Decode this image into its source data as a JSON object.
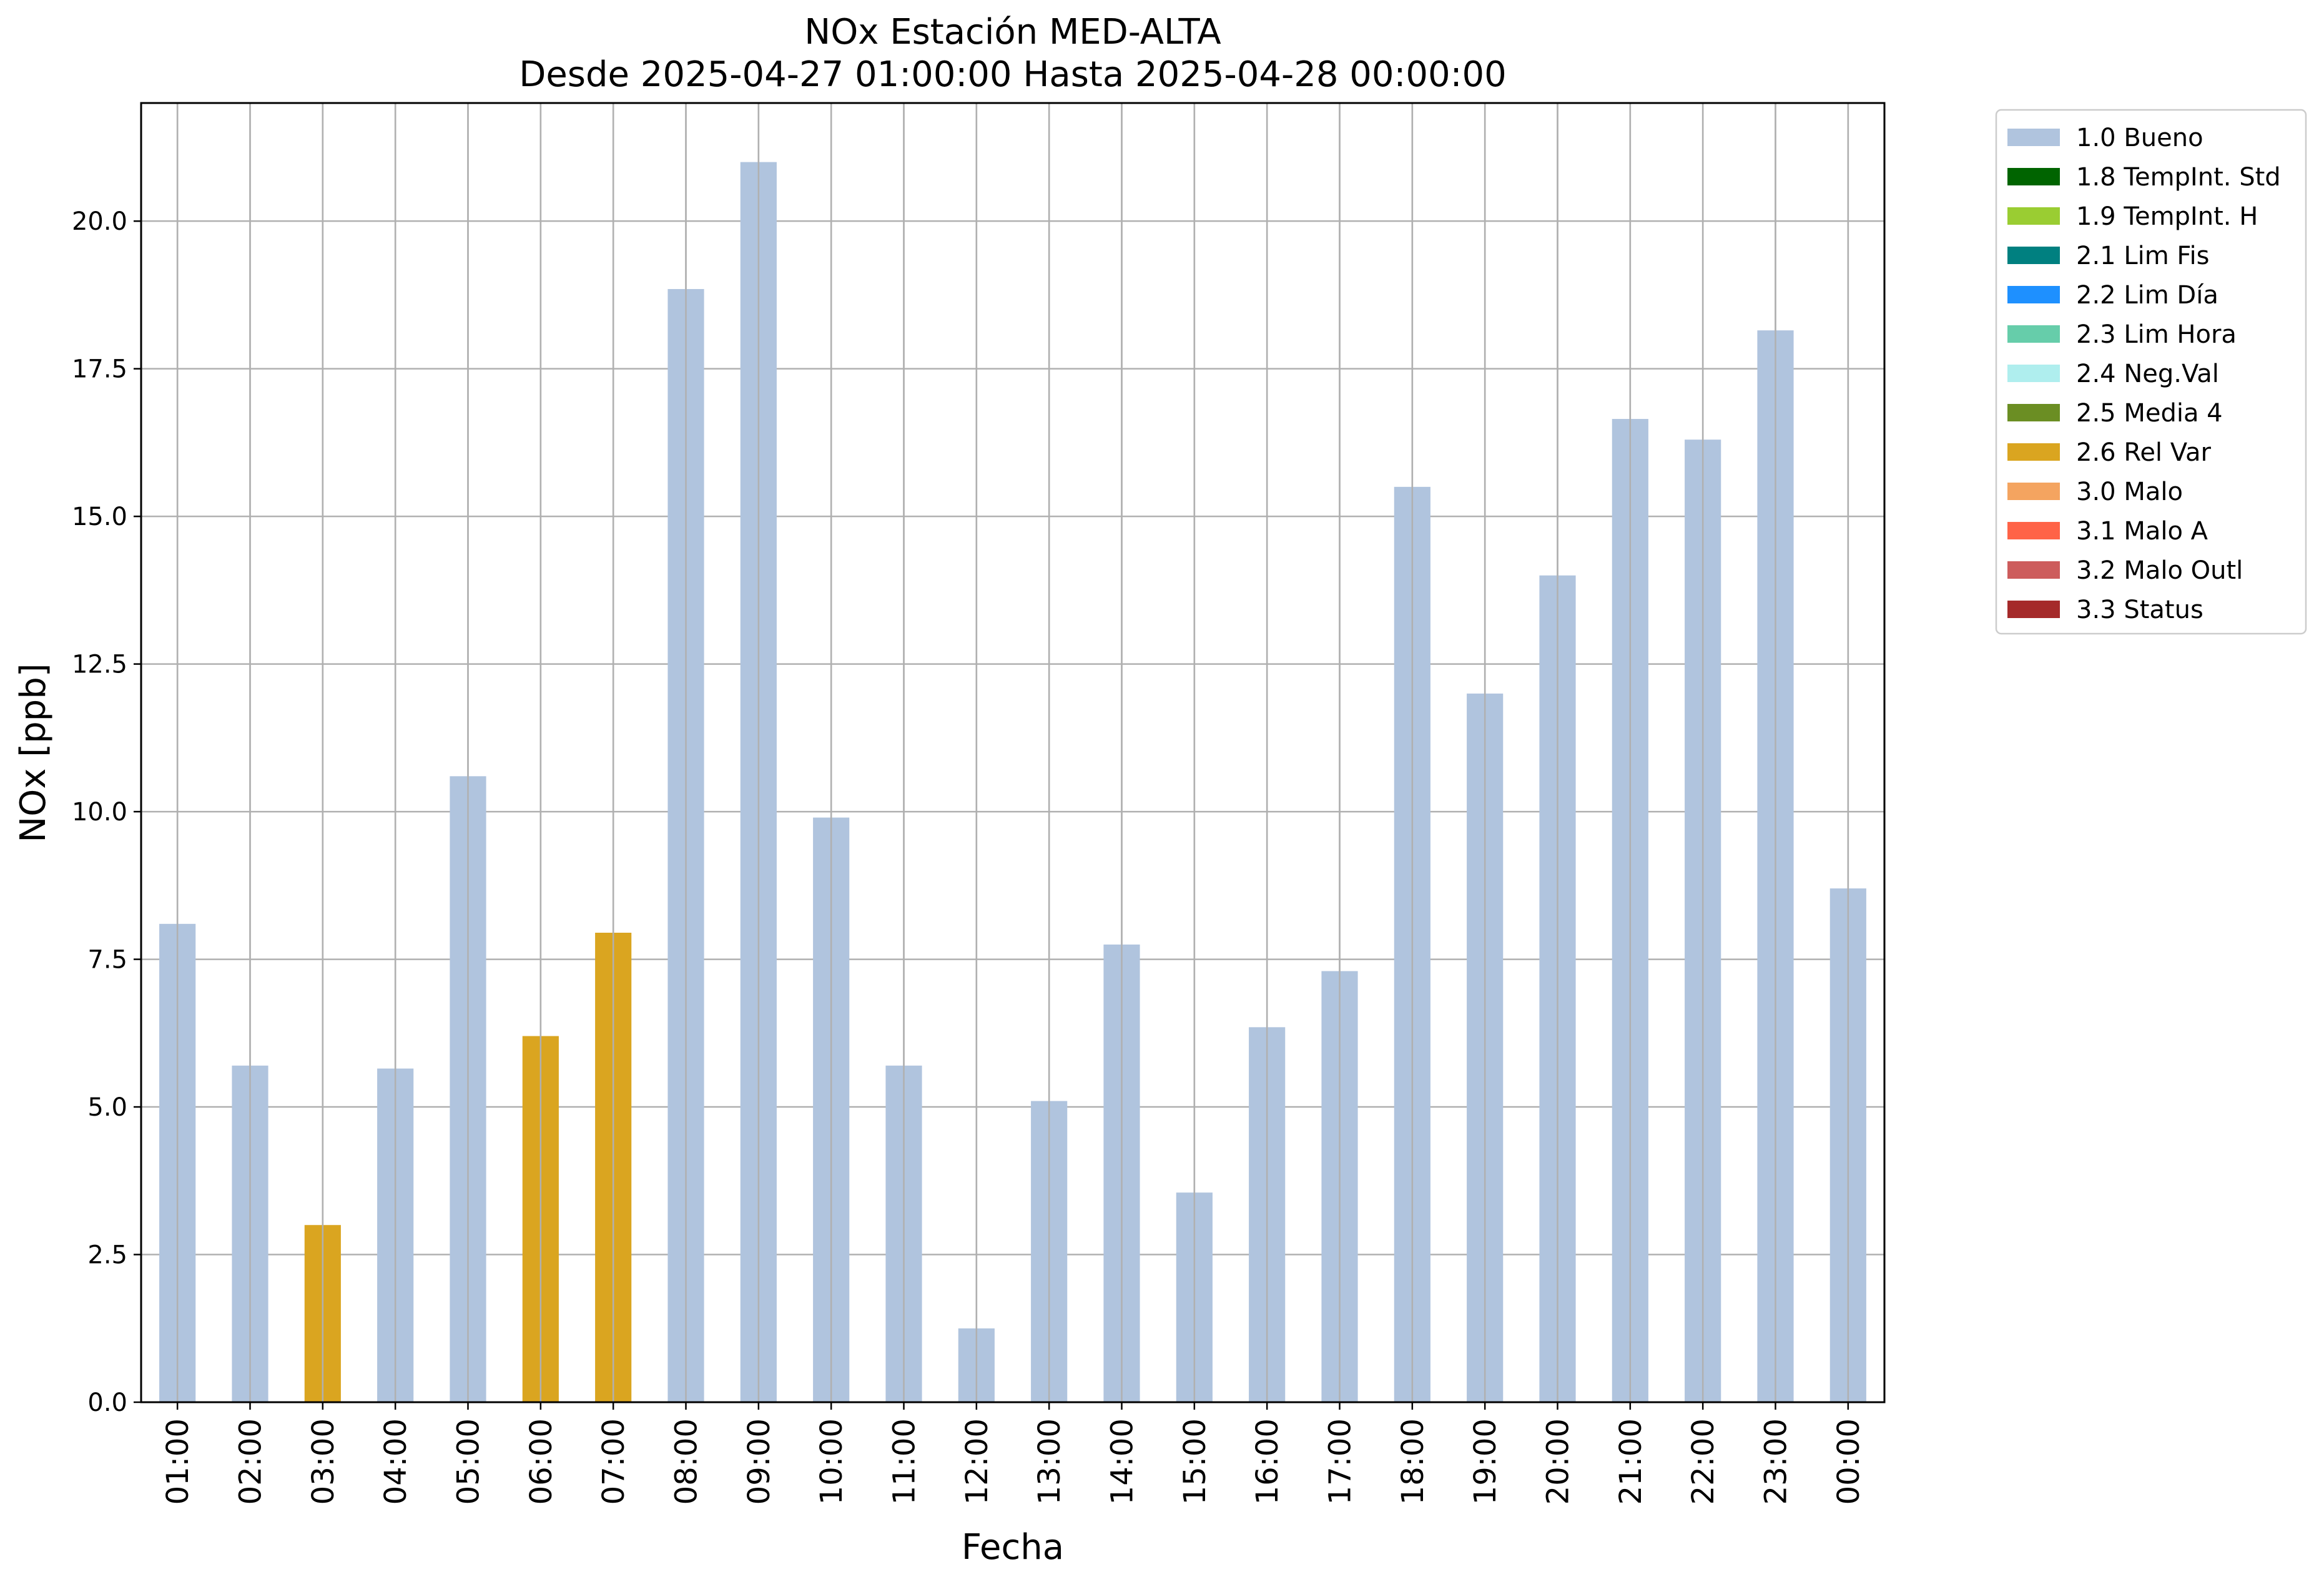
{
  "chart_data": {
    "type": "bar",
    "title": "NOx Estación MED-ALTA",
    "subtitle": "Desde 2025-04-27 01:00:00 Hasta 2025-04-28 00:00:00",
    "xlabel": "Fecha",
    "ylabel": "NOx [ppb]",
    "ylim": [
      0,
      22
    ],
    "yticks": [
      "0.0",
      "2.5",
      "5.0",
      "7.5",
      "10.0",
      "12.5",
      "15.0",
      "17.5",
      "20.0"
    ],
    "grid": true,
    "legend_placement": "outside top-right",
    "categories": [
      "01:00",
      "02:00",
      "03:00",
      "04:00",
      "05:00",
      "06:00",
      "07:00",
      "08:00",
      "09:00",
      "10:00",
      "11:00",
      "12:00",
      "13:00",
      "14:00",
      "15:00",
      "16:00",
      "17:00",
      "18:00",
      "19:00",
      "20:00",
      "21:00",
      "22:00",
      "23:00",
      "00:00"
    ],
    "values": [
      8.1,
      5.7,
      3.0,
      5.65,
      10.6,
      6.2,
      7.95,
      18.85,
      21.0,
      9.9,
      5.7,
      1.25,
      5.1,
      7.75,
      3.55,
      6.35,
      7.3,
      15.5,
      12.0,
      14.0,
      16.65,
      16.3,
      18.15,
      8.7
    ],
    "flags": [
      "1.0 Bueno",
      "1.0 Bueno",
      "2.6 Rel Var",
      "1.0 Bueno",
      "1.0 Bueno",
      "2.6 Rel Var",
      "2.6 Rel Var",
      "1.0 Bueno",
      "1.0 Bueno",
      "1.0 Bueno",
      "1.0 Bueno",
      "1.0 Bueno",
      "1.0 Bueno",
      "1.0 Bueno",
      "1.0 Bueno",
      "1.0 Bueno",
      "1.0 Bueno",
      "1.0 Bueno",
      "1.0 Bueno",
      "1.0 Bueno",
      "1.0 Bueno",
      "1.0 Bueno",
      "1.0 Bueno",
      "1.0 Bueno"
    ],
    "legend": [
      {
        "label": "1.0 Bueno",
        "color": "#b0c4de"
      },
      {
        "label": "1.8 TempInt. Std",
        "color": "#006400"
      },
      {
        "label": "1.9 TempInt. H",
        "color": "#9acd32"
      },
      {
        "label": "2.1 Lim Fis",
        "color": "#008080"
      },
      {
        "label": "2.2 Lim Día",
        "color": "#1e90ff"
      },
      {
        "label": "2.3 Lim Hora",
        "color": "#66cdaa"
      },
      {
        "label": "2.4 Neg.Val",
        "color": "#afeeee"
      },
      {
        "label": "2.5 Media 4",
        "color": "#6b8e23"
      },
      {
        "label": "2.6 Rel Var",
        "color": "#daa520"
      },
      {
        "label": "3.0 Malo",
        "color": "#f4a460"
      },
      {
        "label": "3.1 Malo A",
        "color": "#ff6347"
      },
      {
        "label": "3.2 Malo Outl",
        "color": "#cd5c5c"
      },
      {
        "label": "3.3 Status",
        "color": "#a52a2a"
      }
    ]
  }
}
